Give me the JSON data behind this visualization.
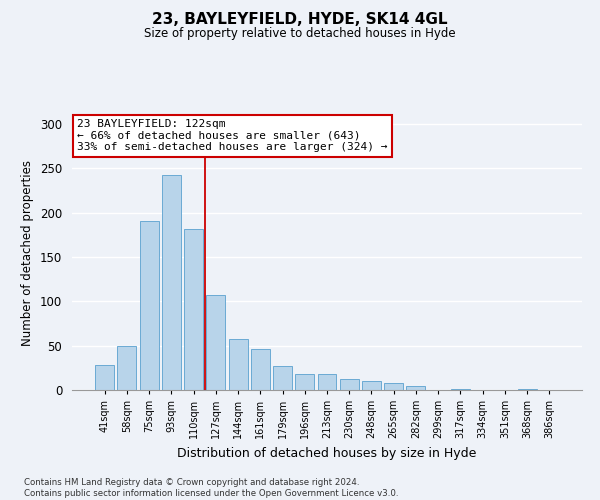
{
  "title": "23, BAYLEYFIELD, HYDE, SK14 4GL",
  "subtitle": "Size of property relative to detached houses in Hyde",
  "xlabel": "Distribution of detached houses by size in Hyde",
  "ylabel": "Number of detached properties",
  "bar_labels": [
    "41sqm",
    "58sqm",
    "75sqm",
    "93sqm",
    "110sqm",
    "127sqm",
    "144sqm",
    "161sqm",
    "179sqm",
    "196sqm",
    "213sqm",
    "230sqm",
    "248sqm",
    "265sqm",
    "282sqm",
    "299sqm",
    "317sqm",
    "334sqm",
    "351sqm",
    "368sqm",
    "386sqm"
  ],
  "bar_values": [
    28,
    50,
    190,
    242,
    182,
    107,
    57,
    46,
    27,
    18,
    18,
    12,
    10,
    8,
    5,
    0,
    1,
    0,
    0,
    1,
    0
  ],
  "bar_color": "#b8d4ea",
  "bar_edge_color": "#6aaad4",
  "marker_line_index": 5,
  "marker_line_color": "#cc0000",
  "ylim": [
    0,
    310
  ],
  "yticks": [
    0,
    50,
    100,
    150,
    200,
    250,
    300
  ],
  "annotation_title": "23 BAYLEYFIELD: 122sqm",
  "annotation_line1": "← 66% of detached houses are smaller (643)",
  "annotation_line2": "33% of semi-detached houses are larger (324) →",
  "annotation_box_color": "#ffffff",
  "annotation_box_edge": "#cc0000",
  "footer_line1": "Contains HM Land Registry data © Crown copyright and database right 2024.",
  "footer_line2": "Contains public sector information licensed under the Open Government Licence v3.0.",
  "background_color": "#eef2f8",
  "grid_color": "#ffffff",
  "title_fontsize": 11,
  "subtitle_fontsize": 8.5,
  "ylabel_fontsize": 8.5,
  "xlabel_fontsize": 9
}
